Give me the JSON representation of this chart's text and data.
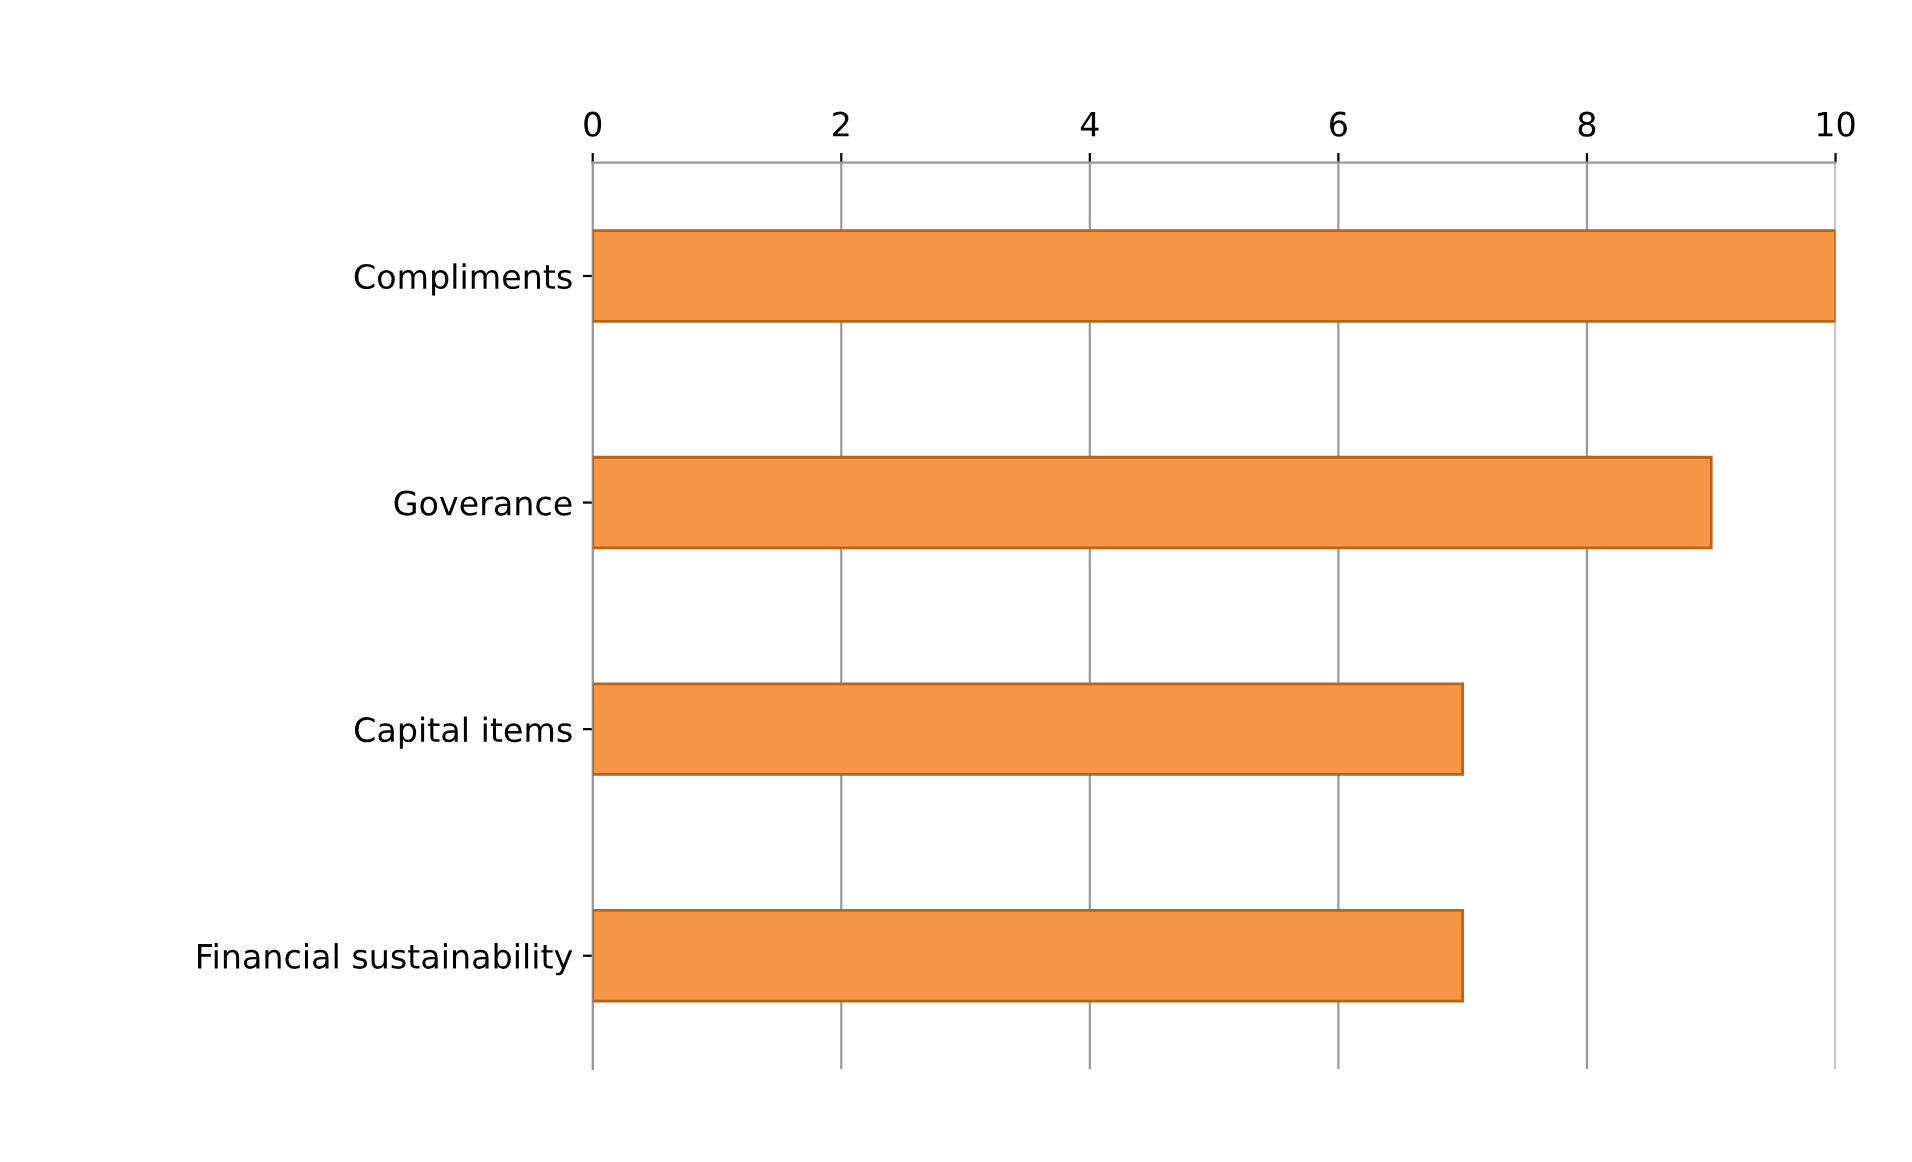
{
  "chart_data": {
    "type": "bar",
    "orientation": "horizontal",
    "categories": [
      "Compliments",
      "Goverance",
      "Capital items",
      "Financial sustainability"
    ],
    "values": [
      10,
      9,
      7,
      7
    ],
    "color": "#f79646",
    "xlim": [
      0,
      10
    ],
    "xticks": [
      0,
      2,
      4,
      6,
      8,
      10
    ],
    "grid": "x"
  }
}
